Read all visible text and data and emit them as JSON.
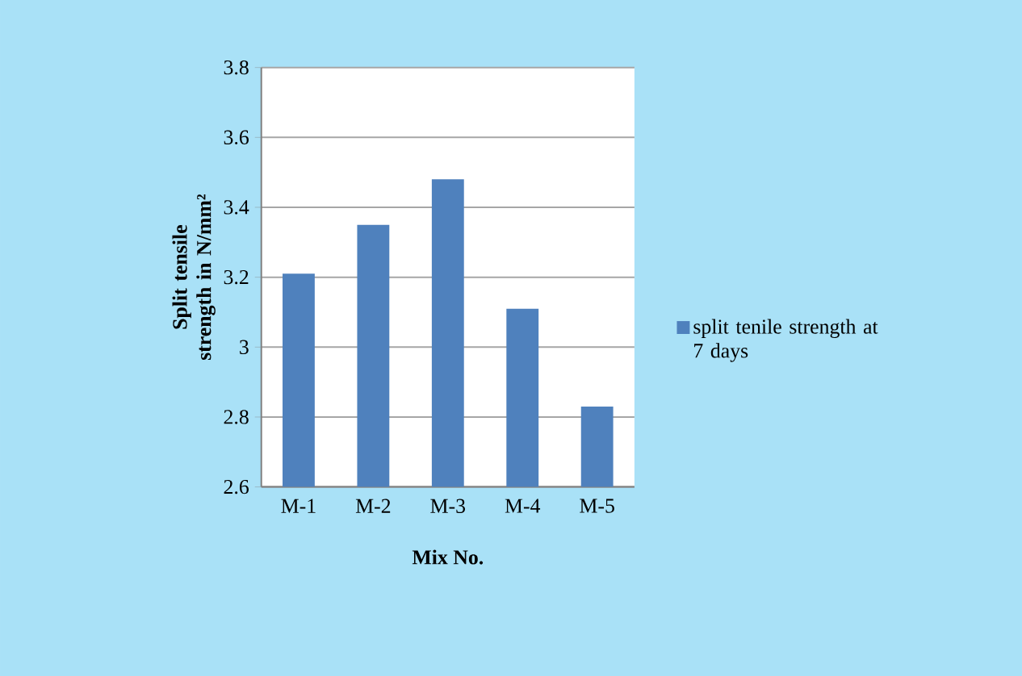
{
  "chart_data": {
    "type": "bar",
    "xlabel": "Mix No.",
    "ylabel": "Split tensile strength in N/mm²",
    "categories": [
      "M-1",
      "M-2",
      "M-3",
      "M-4",
      "M-5"
    ],
    "series": [
      {
        "name": "split tenile strength at 7 days",
        "color": "#4f81bd",
        "values": [
          3.21,
          3.35,
          3.48,
          3.11,
          2.83
        ]
      }
    ],
    "ylim": [
      2.6,
      3.8
    ],
    "yticks": [
      2.6,
      2.8,
      3,
      3.2,
      3.4,
      3.6,
      3.8
    ],
    "grid": "y",
    "legend": "right"
  }
}
